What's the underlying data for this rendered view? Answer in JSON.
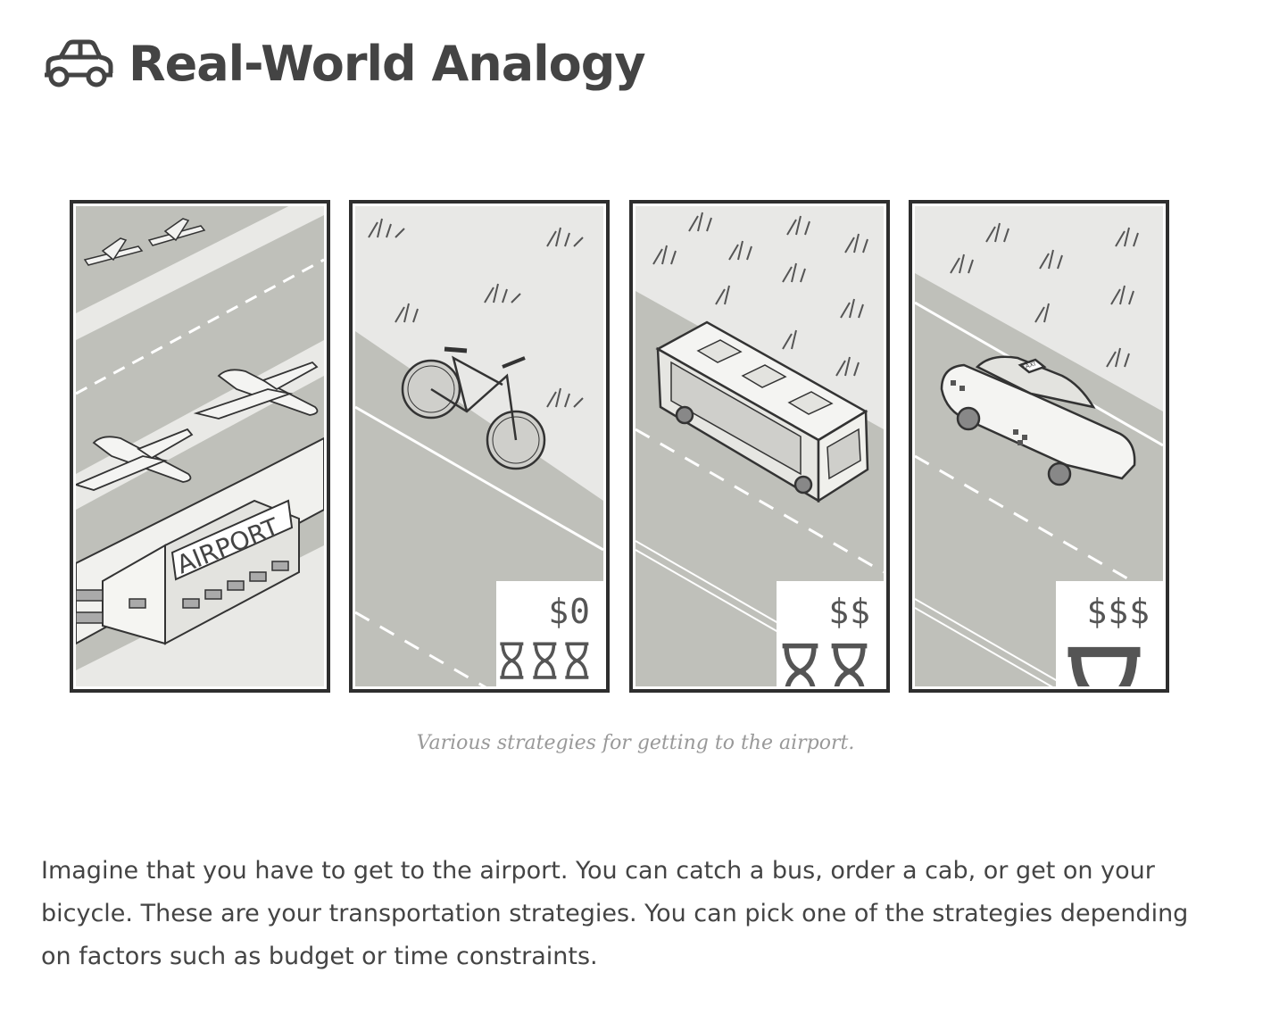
{
  "heading": {
    "title": "Real-World Analogy",
    "icon": "car-icon"
  },
  "figure": {
    "panels": [
      {
        "name": "airport",
        "sign": "AIRPORT"
      },
      {
        "name": "bicycle",
        "price": "$0",
        "hourglasses": 3
      },
      {
        "name": "bus",
        "price": "$$",
        "hourglasses": 2
      },
      {
        "name": "taxi",
        "price": "$$$",
        "hourglasses": 1,
        "roof_sign": "TAXI"
      }
    ],
    "caption": "Various strategies for getting to the airport."
  },
  "paragraph": "Imagine that you have to get to the airport. You can catch a bus, order a cab, or get on your bicycle. These are your transportation strategies. You can pick one of the strategies depending on factors such as budget or time constraints."
}
